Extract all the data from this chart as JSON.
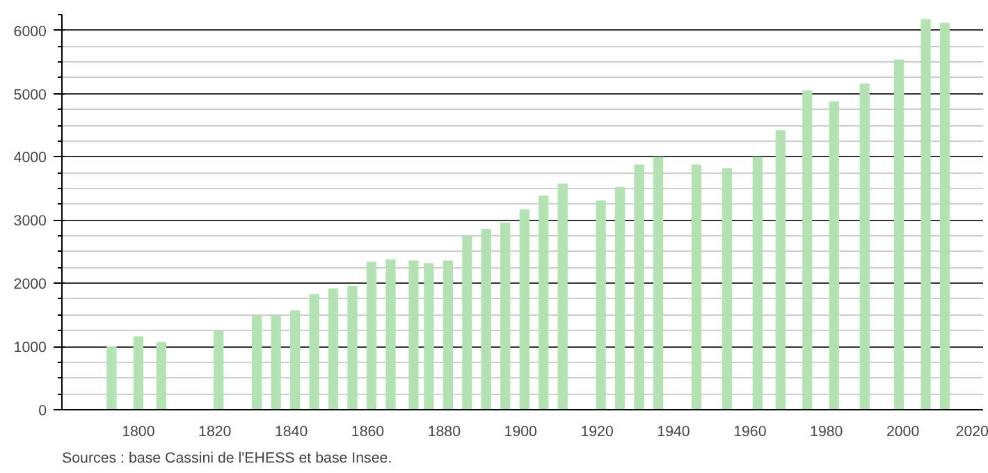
{
  "chart_data": {
    "type": "bar",
    "x": [
      1793,
      1800,
      1806,
      1821,
      1831,
      1836,
      1841,
      1846,
      1851,
      1856,
      1861,
      1866,
      1872,
      1876,
      1881,
      1886,
      1891,
      1896,
      1901,
      1906,
      1911,
      1921,
      1926,
      1931,
      1936,
      1946,
      1954,
      1962,
      1968,
      1975,
      1982,
      1990,
      1999,
      2006,
      2011
    ],
    "values": [
      1000,
      1160,
      1070,
      1250,
      1490,
      1490,
      1570,
      1830,
      1920,
      1960,
      2340,
      2380,
      2360,
      2320,
      2360,
      2740,
      2860,
      2960,
      3170,
      3390,
      3580,
      3310,
      3520,
      3880,
      4000,
      3880,
      3820,
      4000,
      4420,
      5050,
      4880,
      5160,
      5540,
      6180,
      6120
    ],
    "color": "#b3e3b3",
    "xlim": [
      1780,
      2021
    ],
    "ylim": [
      0,
      6250
    ],
    "xticks": [
      1800,
      1820,
      1840,
      1860,
      1880,
      1900,
      1920,
      1940,
      1960,
      1980,
      2000,
      2020
    ],
    "yticks": [
      0,
      1000,
      2000,
      3000,
      4000,
      5000,
      6000
    ],
    "grid": "y",
    "annotations": [
      "Sources : base Cassini de l'EHESS et base Insee."
    ]
  }
}
